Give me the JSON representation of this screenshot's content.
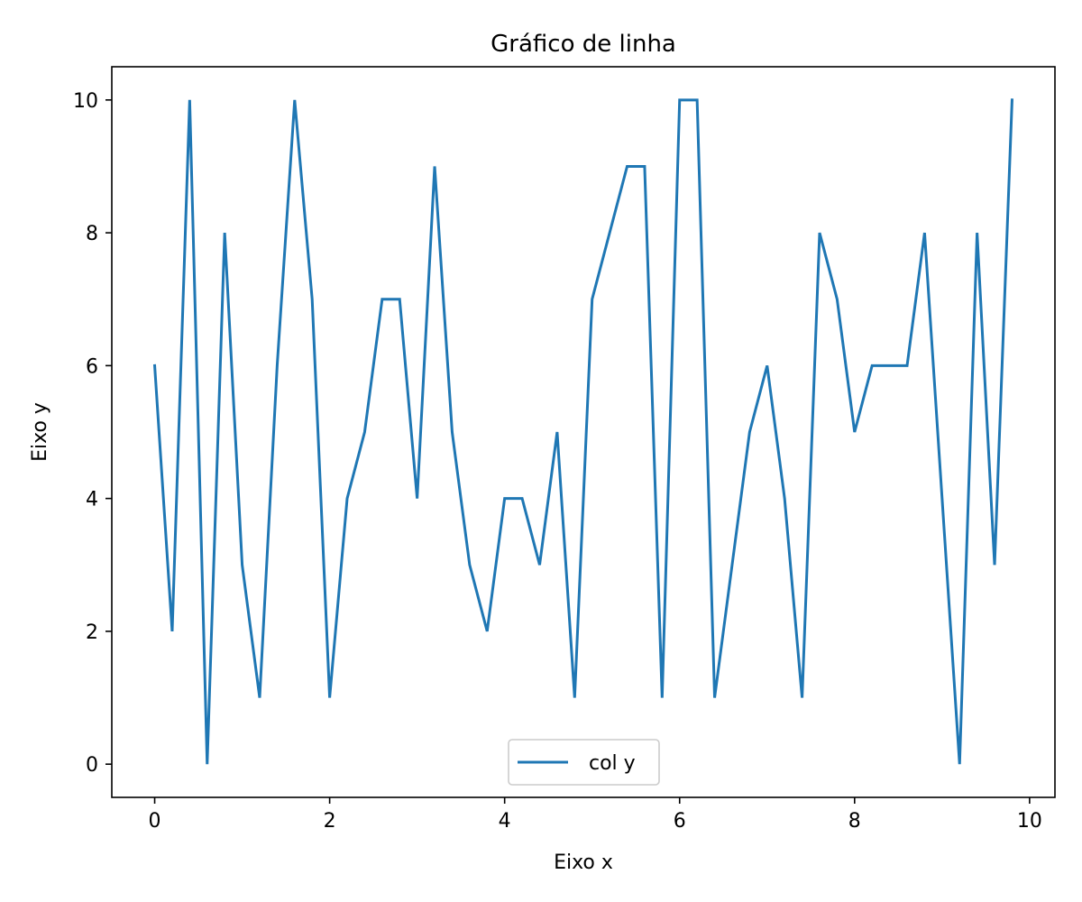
{
  "chart_data": {
    "type": "line",
    "title": "Gráfico de linha",
    "xlabel": "Eixo x",
    "ylabel": "Eixo y",
    "xlim": [
      -0.49,
      10.29
    ],
    "ylim": [
      -0.5,
      10.5
    ],
    "xticks": [
      0,
      2,
      4,
      6,
      8,
      10
    ],
    "yticks": [
      0,
      2,
      4,
      6,
      8,
      10
    ],
    "grid": false,
    "legend_position": "lower center",
    "series": [
      {
        "name": "col y",
        "color": "#1f77b4",
        "x": [
          0.0,
          0.2,
          0.4,
          0.6,
          0.8,
          1.0,
          1.2,
          1.4,
          1.6,
          1.8,
          2.0,
          2.2,
          2.4,
          2.6,
          2.8,
          3.0,
          3.2,
          3.4,
          3.6,
          3.8,
          4.0,
          4.2,
          4.4,
          4.6,
          4.8,
          5.0,
          5.2,
          5.4,
          5.6,
          5.8,
          6.0,
          6.2,
          6.4,
          6.6,
          6.8,
          7.0,
          7.2,
          7.4,
          7.6,
          7.8,
          8.0,
          8.2,
          8.4,
          8.6,
          8.8,
          9.0,
          9.2,
          9.4,
          9.6,
          9.8
        ],
        "y": [
          6,
          2,
          10,
          0,
          8,
          3,
          1,
          6,
          10,
          7,
          1,
          4,
          5,
          7,
          7,
          4,
          9,
          5,
          3,
          2,
          4,
          4,
          3,
          5,
          1,
          7,
          8,
          9,
          9,
          1,
          10,
          10,
          1,
          3,
          5,
          6,
          4,
          1,
          8,
          7,
          5,
          6,
          6,
          6,
          8,
          4,
          0,
          8,
          3,
          10
        ]
      }
    ]
  }
}
